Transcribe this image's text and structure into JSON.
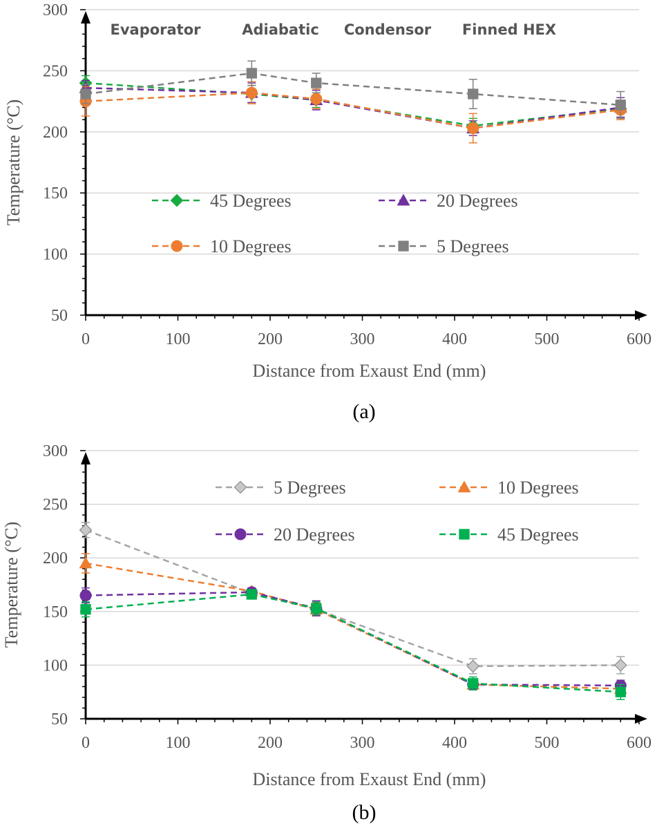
{
  "chart_data": [
    {
      "panel_label": "(a)",
      "type": "line",
      "xlabel": "Distance from Exaust End (mm)",
      "ylabel": "Temperature (°C)",
      "xlim": [
        0,
        600
      ],
      "ylim": [
        50,
        300
      ],
      "x_ticks": [
        "0",
        "100",
        "200",
        "300",
        "400",
        "500",
        "600"
      ],
      "y_ticks": [
        "50",
        "100",
        "150",
        "200",
        "250",
        "300"
      ],
      "grid": "horizontal",
      "legend_position": "center",
      "annotations": [
        "Evaporator",
        "Adiabatic",
        "Condensor",
        "Finned HEX"
      ],
      "x": [
        0,
        180,
        250,
        420,
        580
      ],
      "series": [
        {
          "name": "45 Degrees",
          "marker": "diamond",
          "color": "#1aab40",
          "values": [
            240,
            231,
            226,
            205,
            219
          ],
          "error": [
            6,
            7,
            6,
            6,
            7
          ]
        },
        {
          "name": "20 Degrees",
          "marker": "triangle",
          "color": "#7030a0",
          "values": [
            236,
            232,
            226,
            203,
            220
          ],
          "error": [
            6,
            8,
            8,
            6,
            8
          ]
        },
        {
          "name": "10 Degrees",
          "marker": "circle",
          "color": "#ed7d31",
          "values": [
            225,
            232,
            227,
            203,
            218
          ],
          "error": [
            12,
            9,
            8,
            12,
            8
          ]
        },
        {
          "name": "5 Degrees",
          "marker": "square",
          "color": "#808080",
          "values": [
            231,
            248,
            240,
            231,
            222
          ],
          "error": [
            8,
            10,
            8,
            12,
            11
          ]
        }
      ]
    },
    {
      "panel_label": "(b)",
      "type": "line",
      "xlabel": "Distance from Exaust End (mm)",
      "ylabel": "Temperature (°C)",
      "xlim": [
        0,
        600
      ],
      "ylim": [
        50,
        300
      ],
      "x_ticks": [
        "0",
        "100",
        "200",
        "300",
        "400",
        "500",
        "600"
      ],
      "y_ticks": [
        "50",
        "100",
        "150",
        "200",
        "250",
        "300"
      ],
      "grid": "horizontal",
      "legend_position": "top",
      "x": [
        0,
        180,
        250,
        420,
        580
      ],
      "series": [
        {
          "name": "5 Degrees",
          "marker": "diamond-open",
          "color": "#a5a5a5",
          "values": [
            226,
            167,
            152,
            99,
            100
          ],
          "error": [
            7,
            3,
            6,
            7,
            8
          ]
        },
        {
          "name": "10 Degrees",
          "marker": "triangle",
          "color": "#ed7d31",
          "values": [
            195,
            169,
            152,
            82,
            78
          ],
          "error": [
            9,
            3,
            6,
            5,
            5
          ]
        },
        {
          "name": "20 Degrees",
          "marker": "circle",
          "color": "#7030a0",
          "values": [
            165,
            168,
            153,
            82,
            81
          ],
          "error": [
            7,
            4,
            7,
            5,
            5
          ]
        },
        {
          "name": "45 Degrees",
          "marker": "square",
          "color": "#00b050",
          "values": [
            152,
            166,
            153,
            83,
            75
          ],
          "error": [
            7,
            4,
            6,
            6,
            7
          ]
        }
      ]
    }
  ]
}
